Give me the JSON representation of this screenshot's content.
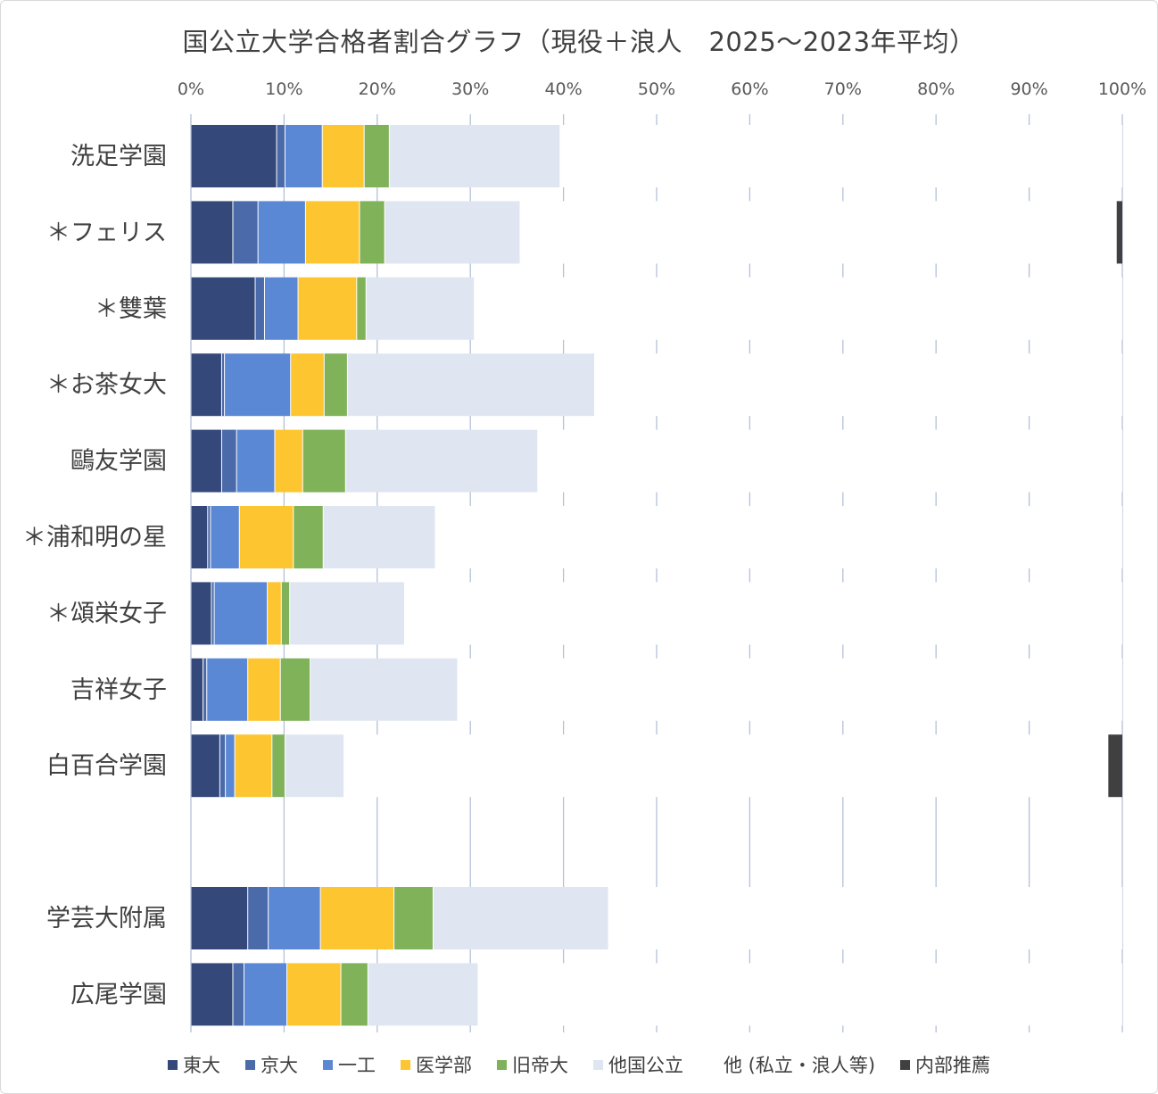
{
  "chart_data": {
    "type": "bar",
    "orientation": "horizontal",
    "stacked": true,
    "title": "国公立大学合格者割合グラフ（現役＋浪人　2025～2023年平均）",
    "x_ticks": [
      "0%",
      "10%",
      "20%",
      "30%",
      "40%",
      "50%",
      "60%",
      "70%",
      "80%",
      "90%",
      "100%"
    ],
    "xlim": [
      0,
      100
    ],
    "grid": true,
    "legend_position": "bottom",
    "categories": [
      "洗足学園",
      "＊フェリス",
      "＊雙葉",
      "＊お茶女大",
      "鷗友学園",
      "＊浦和明の星",
      "＊頌栄女子",
      "吉祥女子",
      "白百合学園",
      "",
      "学芸大附属",
      "広尾学園"
    ],
    "series": [
      {
        "name": "東大",
        "color": "#34487a",
        "values": [
          9.2,
          4.5,
          6.9,
          3.3,
          3.3,
          1.8,
          2.2,
          1.3,
          3.1,
          0,
          6.1,
          4.5
        ]
      },
      {
        "name": "京大",
        "color": "#4a6aaa",
        "values": [
          0.9,
          2.7,
          1.0,
          0.3,
          1.6,
          0.3,
          0.3,
          0.4,
          0.6,
          0,
          2.2,
          1.2
        ]
      },
      {
        "name": "一工",
        "color": "#5b88d4",
        "values": [
          4.0,
          5.1,
          3.6,
          7.1,
          4.1,
          3.1,
          5.7,
          4.4,
          1.0,
          0,
          5.6,
          4.6
        ]
      },
      {
        "name": "医学部",
        "color": "#fdc530",
        "values": [
          4.5,
          5.8,
          6.3,
          3.6,
          3.0,
          5.8,
          1.5,
          3.5,
          4.0,
          0,
          7.9,
          5.8
        ]
      },
      {
        "name": "旧帝大",
        "color": "#80b25a",
        "values": [
          2.7,
          2.7,
          1.0,
          2.5,
          4.6,
          3.2,
          0.9,
          3.2,
          1.4,
          0,
          4.2,
          2.9
        ]
      },
      {
        "name": "他国公立",
        "color": "#dfe6f2",
        "values": [
          18.3,
          14.5,
          11.6,
          26.5,
          20.6,
          12.0,
          12.3,
          15.8,
          6.3,
          0,
          18.8,
          11.8
        ]
      },
      {
        "name": "他 (私立・浪人等)",
        "color": "#ffffff",
        "values": [
          60.4,
          64.1,
          69.6,
          56.7,
          62.8,
          73.8,
          77.1,
          71.4,
          82.1,
          0,
          55.2,
          69.2
        ]
      },
      {
        "name": "内部推薦",
        "color": "#404040",
        "values": [
          0,
          0.6,
          0,
          0,
          0,
          0,
          0,
          0,
          1.5,
          0,
          0,
          0
        ]
      }
    ]
  }
}
